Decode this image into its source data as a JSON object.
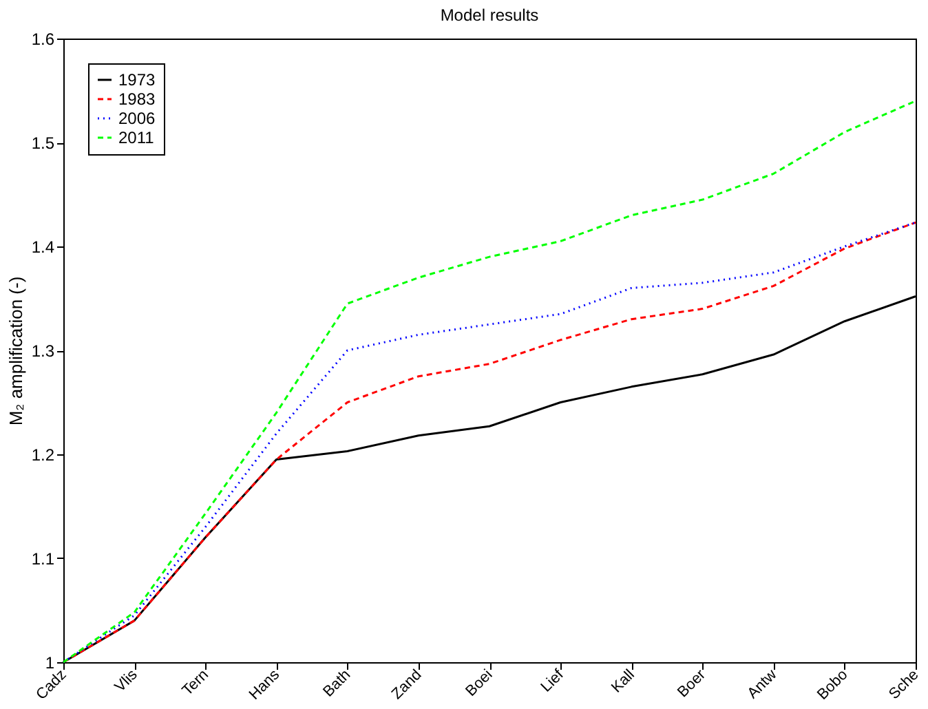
{
  "chart_data": {
    "type": "line",
    "title": "Model results",
    "ylabel": "M₂ amplification (-)",
    "categories": [
      "Cadz",
      "Vlis",
      "Tern",
      "Hans",
      "Bath",
      "Zand",
      "Boei",
      "Lief",
      "Kall",
      "Boer",
      "Antw",
      "Bobo",
      "Sche"
    ],
    "ylim": [
      1,
      1.6
    ],
    "yticks": [
      1,
      1.1,
      1.2,
      1.3,
      1.4,
      1.5,
      1.6
    ],
    "series": [
      {
        "name": "1973",
        "color": "#000000",
        "line_style": "solid",
        "values": [
          1.0,
          1.04,
          1.12,
          1.195,
          1.203,
          1.218,
          1.227,
          1.25,
          1.265,
          1.277,
          1.296,
          1.328,
          1.352
        ]
      },
      {
        "name": "1983",
        "color": "#ff0000",
        "line_style": "dashed",
        "values": [
          1.0,
          1.04,
          1.12,
          1.195,
          1.25,
          1.275,
          1.287,
          1.31,
          1.33,
          1.34,
          1.362,
          1.398,
          1.423
        ]
      },
      {
        "name": "2006",
        "color": "#0000ff",
        "line_style": "dotted",
        "values": [
          1.0,
          1.045,
          1.13,
          1.22,
          1.3,
          1.315,
          1.325,
          1.335,
          1.36,
          1.365,
          1.375,
          1.4,
          1.423
        ]
      },
      {
        "name": "2011",
        "color": "#00ff00",
        "line_style": "dashed",
        "values": [
          1.0,
          1.048,
          1.143,
          1.24,
          1.345,
          1.37,
          1.39,
          1.405,
          1.43,
          1.445,
          1.47,
          1.51,
          1.54
        ]
      }
    ],
    "legend": "top left",
    "grid": false
  }
}
